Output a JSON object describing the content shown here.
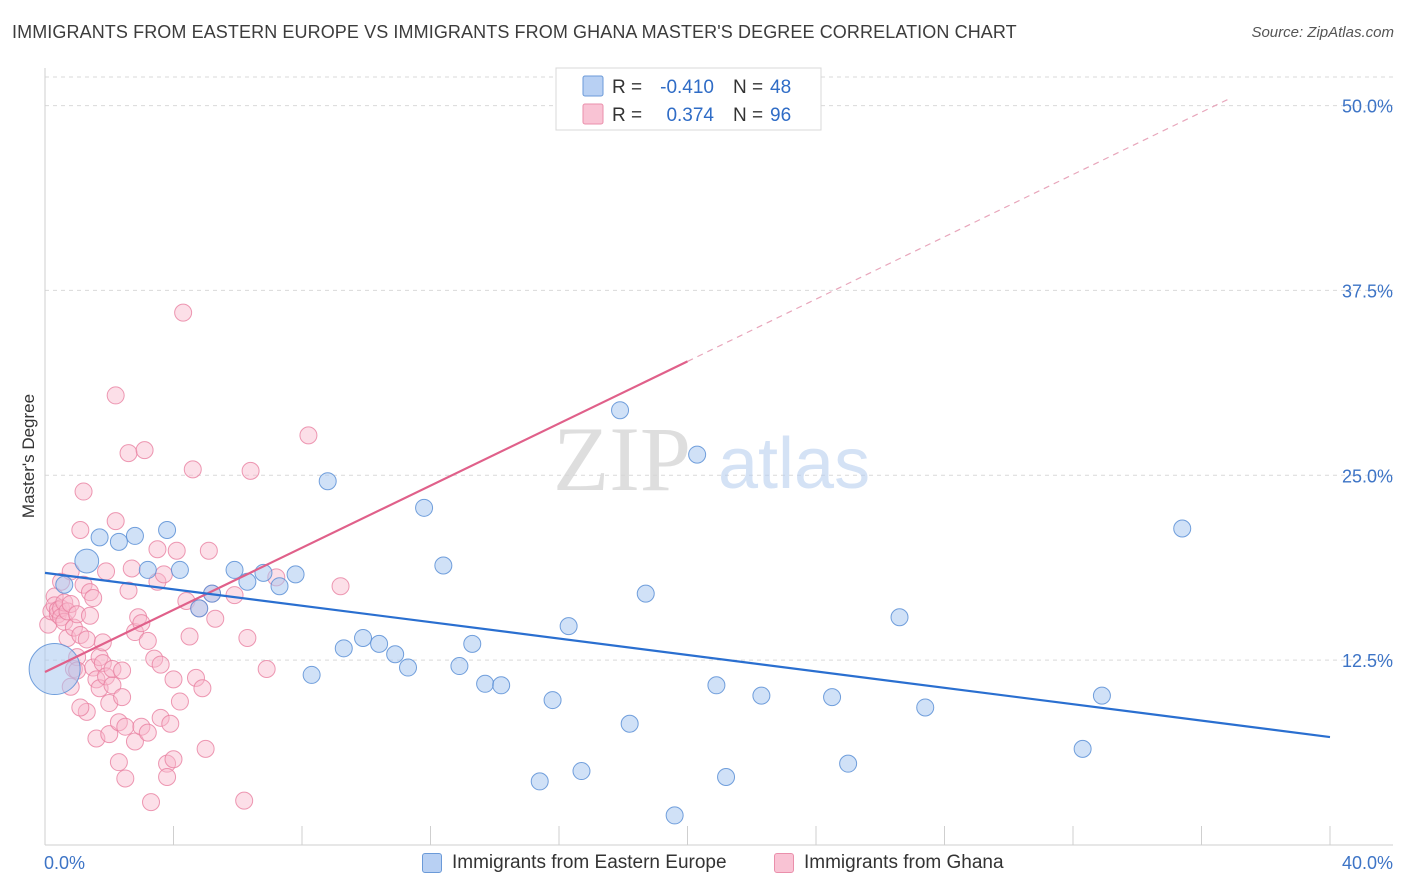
{
  "title": "IMMIGRANTS FROM EASTERN EUROPE VS IMMIGRANTS FROM GHANA MASTER'S DEGREE CORRELATION CHART",
  "source": "Source: ZipAtlas.com",
  "watermark": {
    "zip": "ZIP",
    "atlas": "atlas"
  },
  "colors": {
    "blue_fill": "#a9c8f0",
    "blue_stroke": "#5b8fd6",
    "blue_line": "#2a6fd0",
    "pink_fill": "#f8b9cc",
    "pink_stroke": "#e97fa0",
    "pink_line": "#e0608a",
    "axis_label": "#3d74c6",
    "grid": "#d9d9d9"
  },
  "legend_top": [
    {
      "r_label": "R =",
      "r_value": "-0.410",
      "n_label": "N =",
      "n_value": "48"
    },
    {
      "r_label": "R =",
      "r_value": "0.374",
      "n_label": "N =",
      "n_value": "96"
    }
  ],
  "chart_data": {
    "type": "scatter",
    "title": "IMMIGRANTS FROM EASTERN EUROPE VS IMMIGRANTS FROM GHANA MASTER'S DEGREE CORRELATION CHART",
    "xlabel": "",
    "ylabel": "Master's Degree",
    "xlim": [
      0,
      40
    ],
    "ylim": [
      0,
      52
    ],
    "x_tick_labels": [
      "0.0%",
      "40.0%"
    ],
    "y_ticks": [
      12.5,
      25.0,
      37.5,
      50.0
    ],
    "y_tick_labels": [
      "12.5%",
      "25.0%",
      "37.5%",
      "50.0%"
    ],
    "grid": true,
    "legend_position": "top-center",
    "series": [
      {
        "name": "Immigrants from Eastern Europe",
        "color": "blue",
        "r": -0.41,
        "n": 48,
        "trend": {
          "x": [
            0,
            40
          ],
          "y": [
            18.4,
            7.3
          ]
        },
        "points": [
          [
            0.3,
            11.9,
            3
          ],
          [
            0.6,
            17.6,
            1
          ],
          [
            1.3,
            19.2,
            1.4
          ],
          [
            1.7,
            20.8,
            1
          ],
          [
            2.3,
            20.5,
            1
          ],
          [
            2.8,
            20.9,
            1
          ],
          [
            3.2,
            18.6,
            1
          ],
          [
            3.8,
            21.3,
            1
          ],
          [
            4.2,
            18.6,
            1
          ],
          [
            4.8,
            16.0,
            1
          ],
          [
            5.2,
            17.0,
            1
          ],
          [
            5.9,
            18.6,
            1
          ],
          [
            6.3,
            17.8,
            1
          ],
          [
            6.8,
            18.4,
            1
          ],
          [
            7.3,
            17.5,
            1
          ],
          [
            7.8,
            18.3,
            1
          ],
          [
            8.3,
            11.5,
            1
          ],
          [
            8.8,
            24.6,
            1
          ],
          [
            9.3,
            13.3,
            1
          ],
          [
            9.9,
            14.0,
            1
          ],
          [
            10.4,
            13.6,
            1
          ],
          [
            10.9,
            12.9,
            1
          ],
          [
            11.3,
            12.0,
            1
          ],
          [
            11.8,
            22.8,
            1
          ],
          [
            12.4,
            18.9,
            1
          ],
          [
            12.9,
            12.1,
            1
          ],
          [
            13.3,
            13.6,
            1
          ],
          [
            13.7,
            10.9,
            1
          ],
          [
            14.2,
            10.8,
            1
          ],
          [
            15.4,
            4.3,
            1
          ],
          [
            15.8,
            9.8,
            1
          ],
          [
            16.3,
            14.8,
            1
          ],
          [
            16.7,
            5.0,
            1
          ],
          [
            17.9,
            29.4,
            1
          ],
          [
            18.2,
            8.2,
            1
          ],
          [
            18.7,
            17.0,
            1
          ],
          [
            19.6,
            2.0,
            1
          ],
          [
            20.3,
            26.4,
            1
          ],
          [
            20.9,
            10.8,
            1
          ],
          [
            21.2,
            4.6,
            1
          ],
          [
            22.3,
            10.1,
            1
          ],
          [
            24.5,
            10.0,
            1
          ],
          [
            25.0,
            5.5,
            1
          ],
          [
            26.6,
            15.4,
            1
          ],
          [
            27.4,
            9.3,
            1
          ],
          [
            32.3,
            6.5,
            1
          ],
          [
            32.9,
            10.1,
            1
          ],
          [
            35.4,
            21.4,
            1
          ]
        ]
      },
      {
        "name": "Immigrants from Ghana",
        "color": "pink",
        "r": 0.374,
        "n": 96,
        "trend": {
          "x": [
            0,
            20
          ],
          "y": [
            11.7,
            32.7
          ]
        },
        "trend_extension": {
          "x": [
            20,
            36.9
          ],
          "y": [
            32.7,
            50.5
          ]
        },
        "points": [
          [
            0.1,
            14.9
          ],
          [
            0.2,
            15.8
          ],
          [
            0.3,
            16.8
          ],
          [
            0.3,
            16.2
          ],
          [
            0.4,
            15.6
          ],
          [
            0.4,
            15.9
          ],
          [
            0.5,
            17.8
          ],
          [
            0.5,
            16.0
          ],
          [
            0.5,
            15.4
          ],
          [
            0.6,
            16.4
          ],
          [
            0.6,
            15.1
          ],
          [
            0.7,
            14.0
          ],
          [
            0.7,
            15.8
          ],
          [
            0.8,
            10.7
          ],
          [
            0.8,
            16.3
          ],
          [
            0.8,
            18.5
          ],
          [
            0.9,
            14.7
          ],
          [
            0.9,
            11.9
          ],
          [
            1.0,
            15.6
          ],
          [
            1.0,
            12.7
          ],
          [
            1.0,
            11.8
          ],
          [
            1.1,
            14.2
          ],
          [
            1.1,
            21.3
          ],
          [
            1.2,
            23.9
          ],
          [
            1.2,
            17.6
          ],
          [
            1.3,
            13.9
          ],
          [
            1.3,
            9.0
          ],
          [
            1.4,
            15.5
          ],
          [
            1.4,
            17.1
          ],
          [
            1.5,
            16.7
          ],
          [
            1.5,
            12.0
          ],
          [
            1.6,
            11.2
          ],
          [
            1.6,
            7.2
          ],
          [
            1.7,
            12.7
          ],
          [
            1.7,
            10.6
          ],
          [
            1.8,
            13.7
          ],
          [
            1.8,
            12.3
          ],
          [
            1.9,
            11.4
          ],
          [
            1.9,
            18.5
          ],
          [
            2.0,
            7.5
          ],
          [
            2.0,
            9.6
          ],
          [
            2.1,
            10.8
          ],
          [
            2.1,
            11.9
          ],
          [
            2.2,
            30.4
          ],
          [
            2.2,
            21.9
          ],
          [
            2.3,
            8.3
          ],
          [
            2.3,
            5.6
          ],
          [
            2.4,
            11.8
          ],
          [
            2.5,
            8.0
          ],
          [
            2.5,
            4.5
          ],
          [
            2.6,
            17.2
          ],
          [
            2.6,
            26.5
          ],
          [
            2.7,
            18.7
          ],
          [
            2.8,
            14.4
          ],
          [
            2.8,
            7.0
          ],
          [
            2.9,
            15.4
          ],
          [
            3.0,
            8.0
          ],
          [
            3.0,
            15.0
          ],
          [
            3.1,
            26.7
          ],
          [
            3.2,
            7.6
          ],
          [
            3.2,
            13.8
          ],
          [
            3.3,
            2.9
          ],
          [
            3.4,
            12.6
          ],
          [
            3.5,
            17.8
          ],
          [
            3.5,
            20.0
          ],
          [
            3.6,
            8.6
          ],
          [
            3.7,
            18.3
          ],
          [
            3.8,
            5.5
          ],
          [
            3.8,
            4.6
          ],
          [
            3.9,
            8.2
          ],
          [
            4.0,
            5.8
          ],
          [
            4.0,
            11.2
          ],
          [
            4.1,
            19.9
          ],
          [
            4.2,
            9.7
          ],
          [
            4.3,
            36.0
          ],
          [
            4.4,
            16.5
          ],
          [
            4.5,
            14.1
          ],
          [
            4.6,
            25.4
          ],
          [
            4.7,
            11.3
          ],
          [
            4.8,
            16.0
          ],
          [
            4.9,
            10.6
          ],
          [
            5.0,
            6.5
          ],
          [
            5.1,
            19.9
          ],
          [
            5.2,
            17.0
          ],
          [
            5.3,
            15.3
          ],
          [
            6.2,
            3.0
          ],
          [
            6.4,
            25.3
          ],
          [
            6.9,
            11.9
          ],
          [
            7.2,
            18.1
          ],
          [
            8.2,
            27.7
          ],
          [
            9.2,
            17.5
          ],
          [
            6.3,
            14.0
          ],
          [
            3.6,
            12.2
          ],
          [
            2.4,
            10.0
          ],
          [
            1.1,
            9.3
          ],
          [
            5.9,
            16.9
          ]
        ]
      }
    ]
  },
  "legend_bottom": [
    {
      "label": "Immigrants from Eastern Europe"
    },
    {
      "label": "Immigrants from Ghana"
    }
  ]
}
